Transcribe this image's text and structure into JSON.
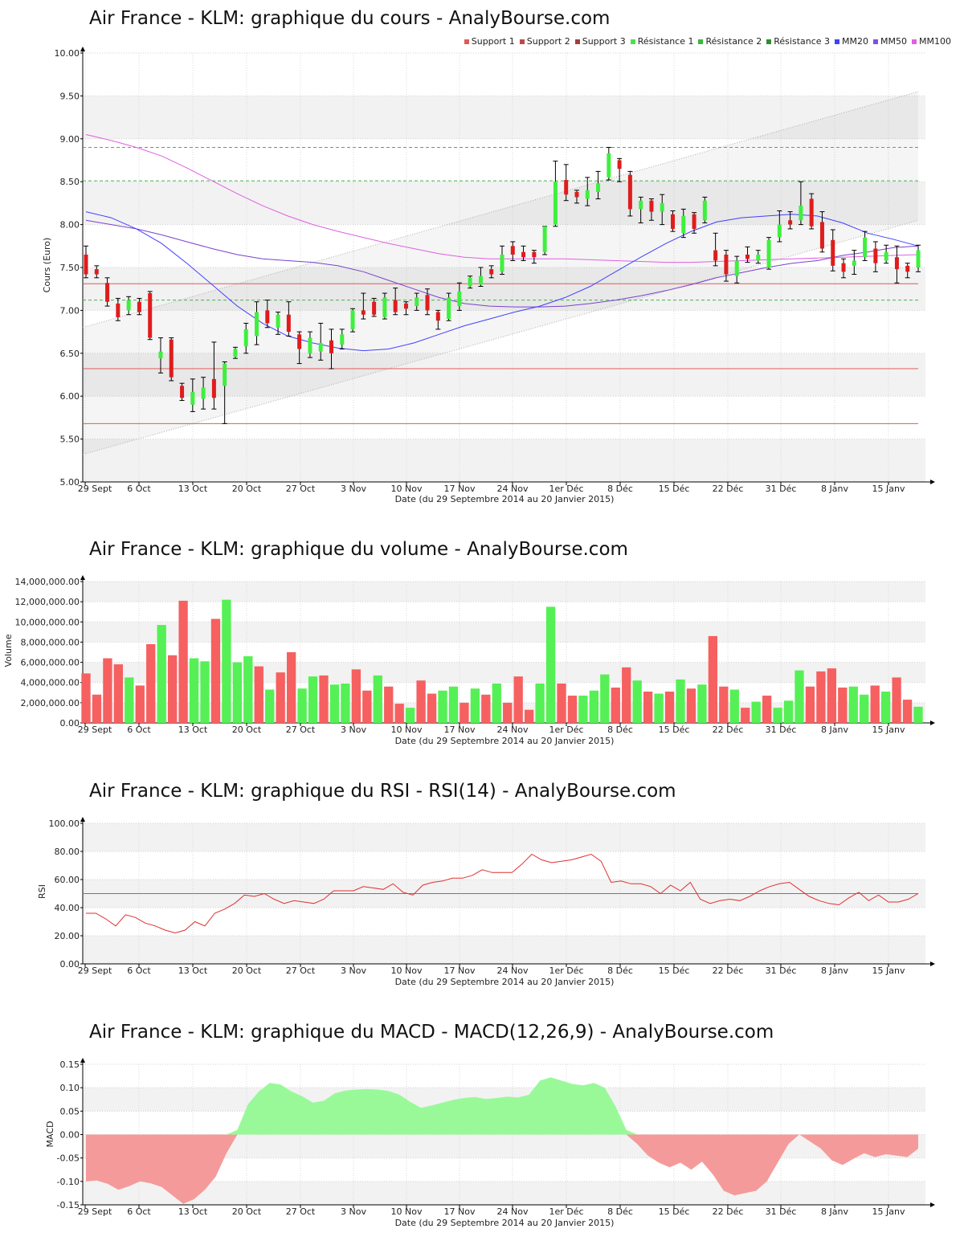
{
  "colors": {
    "up": "#3ef03e",
    "down": "#e01c1c",
    "support": "#e05a5a",
    "resistance": "#4caf50",
    "mm20": "#4040ff",
    "mm50": "#7a40d0",
    "mm100": "#e060e0",
    "rsi": "#e03030",
    "macd_pos": "#99f999",
    "macd_neg": "#f59a9a",
    "vol_up": "#55f055",
    "vol_down": "#f66060"
  },
  "dates": [
    "29 Sept",
    "6 Oct",
    "13 Oct",
    "20 Oct",
    "27 Oct",
    "3 Nov",
    "10 Nov",
    "17 Nov",
    "24 Nov",
    "1er Déc",
    "8 Déc",
    "15 Déc",
    "22 Déc",
    "31 Déc",
    "8 Janv",
    "15 Janv"
  ],
  "xlabel": "Date (du 29 Septembre 2014 au 20 Janvier 2015)",
  "price": {
    "title": "Air France - KLM: graphique du cours - AnalyBourse.com",
    "legend": [
      {
        "label": "Support 1",
        "color": "#e05a5a"
      },
      {
        "label": "Support 2",
        "color": "#c04848"
      },
      {
        "label": "Support 3",
        "color": "#a04040"
      },
      {
        "label": "Résistance 1",
        "color": "#4ce04c"
      },
      {
        "label": "Résistance 2",
        "color": "#3cb83c"
      },
      {
        "label": "Résistance 3",
        "color": "#2e8e2e"
      },
      {
        "label": "MM20",
        "color": "#4040ff"
      },
      {
        "label": "MM50",
        "color": "#8050e0"
      },
      {
        "label": "MM100",
        "color": "#e060e0"
      }
    ]
  },
  "volume": {
    "title": "Air France - KLM: graphique du volume - AnalyBourse.com"
  },
  "rsi": {
    "title": "Air France - KLM: graphique du RSI - RSI(14) - AnalyBourse.com"
  },
  "macd": {
    "title": "Air France - KLM: graphique du MACD - MACD(12,26,9) - AnalyBourse.com"
  },
  "chart_data": [
    {
      "type": "candlestick",
      "ylabel": "Cours (Euro)",
      "ylim": [
        5.0,
        10.0
      ],
      "yticks": [
        "5.00",
        "5.50",
        "6.00",
        "6.50",
        "7.00",
        "7.50",
        "8.00",
        "8.50",
        "9.00",
        "9.50",
        "10.00"
      ],
      "candles": [
        {
          "o": 7.65,
          "c": 7.42,
          "h": 7.75,
          "l": 7.38
        },
        {
          "o": 7.48,
          "c": 7.42,
          "h": 7.52,
          "l": 7.38
        },
        {
          "o": 7.32,
          "c": 7.1,
          "h": 7.38,
          "l": 7.05
        },
        {
          "o": 7.08,
          "c": 6.92,
          "h": 7.14,
          "l": 6.88
        },
        {
          "o": 7.0,
          "c": 7.12,
          "h": 7.16,
          "l": 6.95
        },
        {
          "o": 7.1,
          "c": 6.98,
          "h": 7.14,
          "l": 6.95
        },
        {
          "o": 7.2,
          "c": 6.68,
          "h": 7.22,
          "l": 6.66
        },
        {
          "o": 6.44,
          "c": 6.52,
          "h": 6.68,
          "l": 6.27
        },
        {
          "o": 6.66,
          "c": 6.22,
          "h": 6.68,
          "l": 6.18
        },
        {
          "o": 6.12,
          "c": 5.98,
          "h": 6.15,
          "l": 5.95
        },
        {
          "o": 5.9,
          "c": 6.05,
          "h": 6.2,
          "l": 5.82
        },
        {
          "o": 5.97,
          "c": 6.1,
          "h": 6.22,
          "l": 5.85
        },
        {
          "o": 6.2,
          "c": 5.98,
          "h": 6.63,
          "l": 5.85
        },
        {
          "o": 6.12,
          "c": 6.38,
          "h": 6.4,
          "l": 5.68
        },
        {
          "o": 6.46,
          "c": 6.55,
          "h": 6.57,
          "l": 6.44
        },
        {
          "o": 6.58,
          "c": 6.78,
          "h": 6.85,
          "l": 6.5
        },
        {
          "o": 6.7,
          "c": 6.98,
          "h": 7.1,
          "l": 6.6
        },
        {
          "o": 7.0,
          "c": 6.85,
          "h": 7.12,
          "l": 6.8
        },
        {
          "o": 6.8,
          "c": 6.95,
          "h": 6.98,
          "l": 6.72
        },
        {
          "o": 6.95,
          "c": 6.75,
          "h": 7.1,
          "l": 6.7
        },
        {
          "o": 6.72,
          "c": 6.55,
          "h": 6.75,
          "l": 6.38
        },
        {
          "o": 6.5,
          "c": 6.68,
          "h": 6.75,
          "l": 6.45
        },
        {
          "o": 6.52,
          "c": 6.62,
          "h": 6.85,
          "l": 6.42
        },
        {
          "o": 6.65,
          "c": 6.5,
          "h": 6.78,
          "l": 6.32
        },
        {
          "o": 6.6,
          "c": 6.72,
          "h": 6.78,
          "l": 6.55
        },
        {
          "o": 6.78,
          "c": 7.0,
          "h": 7.02,
          "l": 6.75
        },
        {
          "o": 7.0,
          "c": 6.95,
          "h": 7.2,
          "l": 6.9
        },
        {
          "o": 7.1,
          "c": 6.95,
          "h": 7.14,
          "l": 6.93
        },
        {
          "o": 6.92,
          "c": 7.15,
          "h": 7.2,
          "l": 6.9
        },
        {
          "o": 7.12,
          "c": 6.98,
          "h": 7.26,
          "l": 6.95
        },
        {
          "o": 7.08,
          "c": 7.02,
          "h": 7.1,
          "l": 6.95
        },
        {
          "o": 7.05,
          "c": 7.15,
          "h": 7.2,
          "l": 7.0
        },
        {
          "o": 7.18,
          "c": 7.0,
          "h": 7.25,
          "l": 6.95
        },
        {
          "o": 6.98,
          "c": 6.88,
          "h": 7.0,
          "l": 6.78
        },
        {
          "o": 6.9,
          "c": 7.15,
          "h": 7.2,
          "l": 6.88
        },
        {
          "o": 7.05,
          "c": 7.22,
          "h": 7.32,
          "l": 7.0
        },
        {
          "o": 7.28,
          "c": 7.38,
          "h": 7.4,
          "l": 7.26
        },
        {
          "o": 7.3,
          "c": 7.4,
          "h": 7.5,
          "l": 7.28
        },
        {
          "o": 7.48,
          "c": 7.42,
          "h": 7.52,
          "l": 7.38
        },
        {
          "o": 7.45,
          "c": 7.65,
          "h": 7.75,
          "l": 7.42
        },
        {
          "o": 7.75,
          "c": 7.65,
          "h": 7.8,
          "l": 7.58
        },
        {
          "o": 7.68,
          "c": 7.62,
          "h": 7.75,
          "l": 7.58
        },
        {
          "o": 7.68,
          "c": 7.62,
          "h": 7.7,
          "l": 7.55
        },
        {
          "o": 7.68,
          "c": 7.98,
          "h": 7.98,
          "l": 7.65
        },
        {
          "o": 8.0,
          "c": 8.5,
          "h": 8.74,
          "l": 7.98
        },
        {
          "o": 8.52,
          "c": 8.35,
          "h": 8.7,
          "l": 8.28
        },
        {
          "o": 8.38,
          "c": 8.32,
          "h": 8.4,
          "l": 8.25
        },
        {
          "o": 8.3,
          "c": 8.4,
          "h": 8.55,
          "l": 8.22
        },
        {
          "o": 8.38,
          "c": 8.48,
          "h": 8.62,
          "l": 8.3
        },
        {
          "o": 8.55,
          "c": 8.83,
          "h": 8.9,
          "l": 8.52
        },
        {
          "o": 8.75,
          "c": 8.65,
          "h": 8.77,
          "l": 8.5
        },
        {
          "o": 8.58,
          "c": 8.18,
          "h": 8.62,
          "l": 8.1
        },
        {
          "o": 8.18,
          "c": 8.28,
          "h": 8.32,
          "l": 8.02
        },
        {
          "o": 8.28,
          "c": 8.15,
          "h": 8.3,
          "l": 8.05
        },
        {
          "o": 8.15,
          "c": 8.25,
          "h": 8.35,
          "l": 8.0
        },
        {
          "o": 8.12,
          "c": 7.95,
          "h": 8.16,
          "l": 7.92
        },
        {
          "o": 7.9,
          "c": 8.1,
          "h": 8.18,
          "l": 7.85
        },
        {
          "o": 8.12,
          "c": 7.95,
          "h": 8.14,
          "l": 7.9
        },
        {
          "o": 8.05,
          "c": 8.28,
          "h": 8.32,
          "l": 8.02
        },
        {
          "o": 7.7,
          "c": 7.58,
          "h": 7.9,
          "l": 7.52
        },
        {
          "o": 7.65,
          "c": 7.42,
          "h": 7.7,
          "l": 7.34
        },
        {
          "o": 7.4,
          "c": 7.58,
          "h": 7.63,
          "l": 7.32
        },
        {
          "o": 7.65,
          "c": 7.6,
          "h": 7.74,
          "l": 7.56
        },
        {
          "o": 7.58,
          "c": 7.65,
          "h": 7.7,
          "l": 7.55
        },
        {
          "o": 7.5,
          "c": 7.82,
          "h": 7.85,
          "l": 7.48
        },
        {
          "o": 7.85,
          "c": 8.0,
          "h": 8.16,
          "l": 7.8
        },
        {
          "o": 8.05,
          "c": 8.0,
          "h": 8.15,
          "l": 7.95
        },
        {
          "o": 8.05,
          "c": 8.22,
          "h": 8.5,
          "l": 8.0
        },
        {
          "o": 8.3,
          "c": 7.98,
          "h": 8.36,
          "l": 7.95
        },
        {
          "o": 8.03,
          "c": 7.72,
          "h": 8.15,
          "l": 7.68
        },
        {
          "o": 7.82,
          "c": 7.52,
          "h": 7.94,
          "l": 7.46
        },
        {
          "o": 7.55,
          "c": 7.45,
          "h": 7.6,
          "l": 7.38
        },
        {
          "o": 7.52,
          "c": 7.58,
          "h": 7.7,
          "l": 7.42
        },
        {
          "o": 7.62,
          "c": 7.85,
          "h": 7.92,
          "l": 7.58
        },
        {
          "o": 7.72,
          "c": 7.55,
          "h": 7.8,
          "l": 7.45
        },
        {
          "o": 7.58,
          "c": 7.68,
          "h": 7.76,
          "l": 7.55
        },
        {
          "o": 7.62,
          "c": 7.48,
          "h": 7.75,
          "l": 7.32
        },
        {
          "o": 7.52,
          "c": 7.45,
          "h": 7.55,
          "l": 7.38
        },
        {
          "o": 7.5,
          "c": 7.7,
          "h": 7.76,
          "l": 7.45
        }
      ],
      "supports": [
        7.31,
        6.32,
        5.68
      ],
      "resistances": [
        8.9,
        8.51,
        7.12
      ],
      "channel": {
        "lower": [
          5.32,
          8.05
        ],
        "upper": [
          6.8,
          9.55
        ]
      },
      "mm20": [
        8.15,
        8.08,
        7.95,
        7.78,
        7.55,
        7.3,
        7.05,
        6.85,
        6.7,
        6.62,
        6.56,
        6.53,
        6.55,
        6.62,
        6.72,
        6.82,
        6.9,
        6.98,
        7.05,
        7.15,
        7.28,
        7.45,
        7.62,
        7.78,
        7.92,
        8.03,
        8.08,
        8.1,
        8.12,
        8.1,
        8.02,
        7.9,
        7.83,
        7.75
      ],
      "mm50": [
        8.05,
        8.0,
        7.95,
        7.88,
        7.8,
        7.72,
        7.65,
        7.6,
        7.58,
        7.56,
        7.52,
        7.45,
        7.35,
        7.25,
        7.15,
        7.08,
        7.05,
        7.04,
        7.04,
        7.05,
        7.08,
        7.12,
        7.17,
        7.23,
        7.3,
        7.38,
        7.44,
        7.5,
        7.55,
        7.58,
        7.64,
        7.68,
        7.73,
        7.75
      ],
      "mm100": [
        9.05,
        8.98,
        8.9,
        8.8,
        8.66,
        8.51,
        8.36,
        8.22,
        8.1,
        8.0,
        7.92,
        7.85,
        7.78,
        7.72,
        7.66,
        7.62,
        7.6,
        7.6,
        7.6,
        7.6,
        7.59,
        7.58,
        7.57,
        7.56,
        7.56,
        7.57,
        7.58,
        7.59,
        7.6,
        7.61,
        7.62,
        7.63,
        7.64,
        7.65
      ]
    },
    {
      "type": "bar",
      "ylabel": "Volume",
      "ylim": [
        0,
        14000000
      ],
      "yticks": [
        "0.00",
        "2,000,000.00",
        "4,000,000.00",
        "6,000,000.00",
        "8,000,000.00",
        "10,000,000.00",
        "12,000,000.00",
        "14,000,000.00"
      ],
      "values": [
        4900000,
        2800000,
        6400000,
        5800000,
        4500000,
        3700000,
        7800000,
        9700000,
        6700000,
        12100000,
        6400000,
        6100000,
        10300000,
        12200000,
        6000000,
        6600000,
        5600000,
        3300000,
        5000000,
        7000000,
        3400000,
        4600000,
        4700000,
        3800000,
        3900000,
        5300000,
        3200000,
        4700000,
        3600000,
        1900000,
        1500000,
        4200000,
        2900000,
        3200000,
        3600000,
        2000000,
        3400000,
        2800000,
        3900000,
        2000000,
        4600000,
        1300000,
        3900000,
        11500000,
        3900000,
        2700000,
        2700000,
        3200000,
        4800000,
        3500000,
        5500000,
        4200000,
        3100000,
        2900000,
        3100000,
        4300000,
        3400000,
        3800000,
        8600000,
        3600000,
        3300000,
        1500000,
        2100000,
        2700000,
        1500000,
        2200000,
        5200000,
        3600000,
        5100000,
        5400000,
        3500000,
        3600000,
        2800000,
        3700000,
        3100000,
        4500000,
        2300000,
        1600000
      ],
      "up": [
        0,
        0,
        0,
        0,
        1,
        0,
        0,
        1,
        0,
        0,
        1,
        1,
        0,
        1,
        1,
        1,
        0,
        1,
        0,
        0,
        1,
        1,
        0,
        1,
        1,
        0,
        0,
        1,
        0,
        0,
        1,
        0,
        0,
        1,
        1,
        0,
        1,
        0,
        1,
        0,
        0,
        0,
        1,
        1,
        0,
        0,
        1,
        1,
        1,
        0,
        0,
        1,
        0,
        1,
        0,
        1,
        0,
        1,
        0,
        0,
        1,
        0,
        1,
        0,
        1,
        1,
        1,
        0,
        0,
        0,
        0,
        1,
        1,
        0,
        1,
        0,
        0,
        1
      ],
      "colors_up": "#55f055",
      "colors_down": "#f66060"
    },
    {
      "type": "line",
      "ylabel": "RSI",
      "ylim": [
        0,
        100
      ],
      "yticks": [
        "0.00",
        "20.00",
        "40.00",
        "60.00",
        "80.00",
        "100.00"
      ],
      "reference": 50,
      "values": [
        36,
        36,
        32,
        27,
        35,
        33,
        29,
        27,
        24,
        22,
        24,
        30,
        27,
        36,
        39,
        43,
        49,
        48,
        50,
        46,
        43,
        45,
        44,
        43,
        46,
        52,
        52,
        52,
        55,
        54,
        53,
        57,
        51,
        49,
        56,
        58,
        59,
        61,
        61,
        63,
        67,
        65,
        65,
        65,
        71,
        78,
        74,
        72,
        73,
        74,
        76,
        78,
        73,
        58,
        59,
        57,
        57,
        55,
        50,
        56,
        52,
        58,
        46,
        43,
        45,
        46,
        45,
        48,
        52,
        55,
        57,
        58,
        53,
        48,
        45,
        43,
        42,
        47,
        51,
        45,
        49,
        44,
        44,
        46,
        50
      ]
    },
    {
      "type": "area",
      "ylabel": "MACD",
      "ylim": [
        -0.15,
        0.15
      ],
      "yticks": [
        "-0.15",
        "-0.10",
        "-0.05",
        "0.00",
        "0.05",
        "0.10",
        "0.15"
      ],
      "values": [
        -0.1,
        -0.098,
        -0.105,
        -0.118,
        -0.11,
        -0.1,
        -0.104,
        -0.112,
        -0.13,
        -0.148,
        -0.138,
        -0.118,
        -0.09,
        -0.04,
        0.01,
        0.065,
        0.092,
        0.11,
        0.107,
        0.092,
        0.082,
        0.068,
        0.072,
        0.088,
        0.094,
        0.096,
        0.097,
        0.096,
        0.093,
        0.085,
        0.07,
        0.057,
        0.062,
        0.068,
        0.074,
        0.078,
        0.08,
        0.076,
        0.078,
        0.081,
        0.079,
        0.085,
        0.115,
        0.122,
        0.115,
        0.108,
        0.105,
        0.11,
        0.1,
        0.06,
        0.01,
        -0.02,
        -0.045,
        -0.06,
        -0.07,
        -0.06,
        -0.075,
        -0.058,
        -0.085,
        -0.12,
        -0.13,
        -0.125,
        -0.12,
        -0.1,
        -0.06,
        -0.02,
        0.0,
        -0.015,
        -0.03,
        -0.055,
        -0.065,
        -0.052,
        -0.04,
        -0.048,
        -0.042,
        -0.045,
        -0.048,
        -0.03
      ]
    }
  ]
}
